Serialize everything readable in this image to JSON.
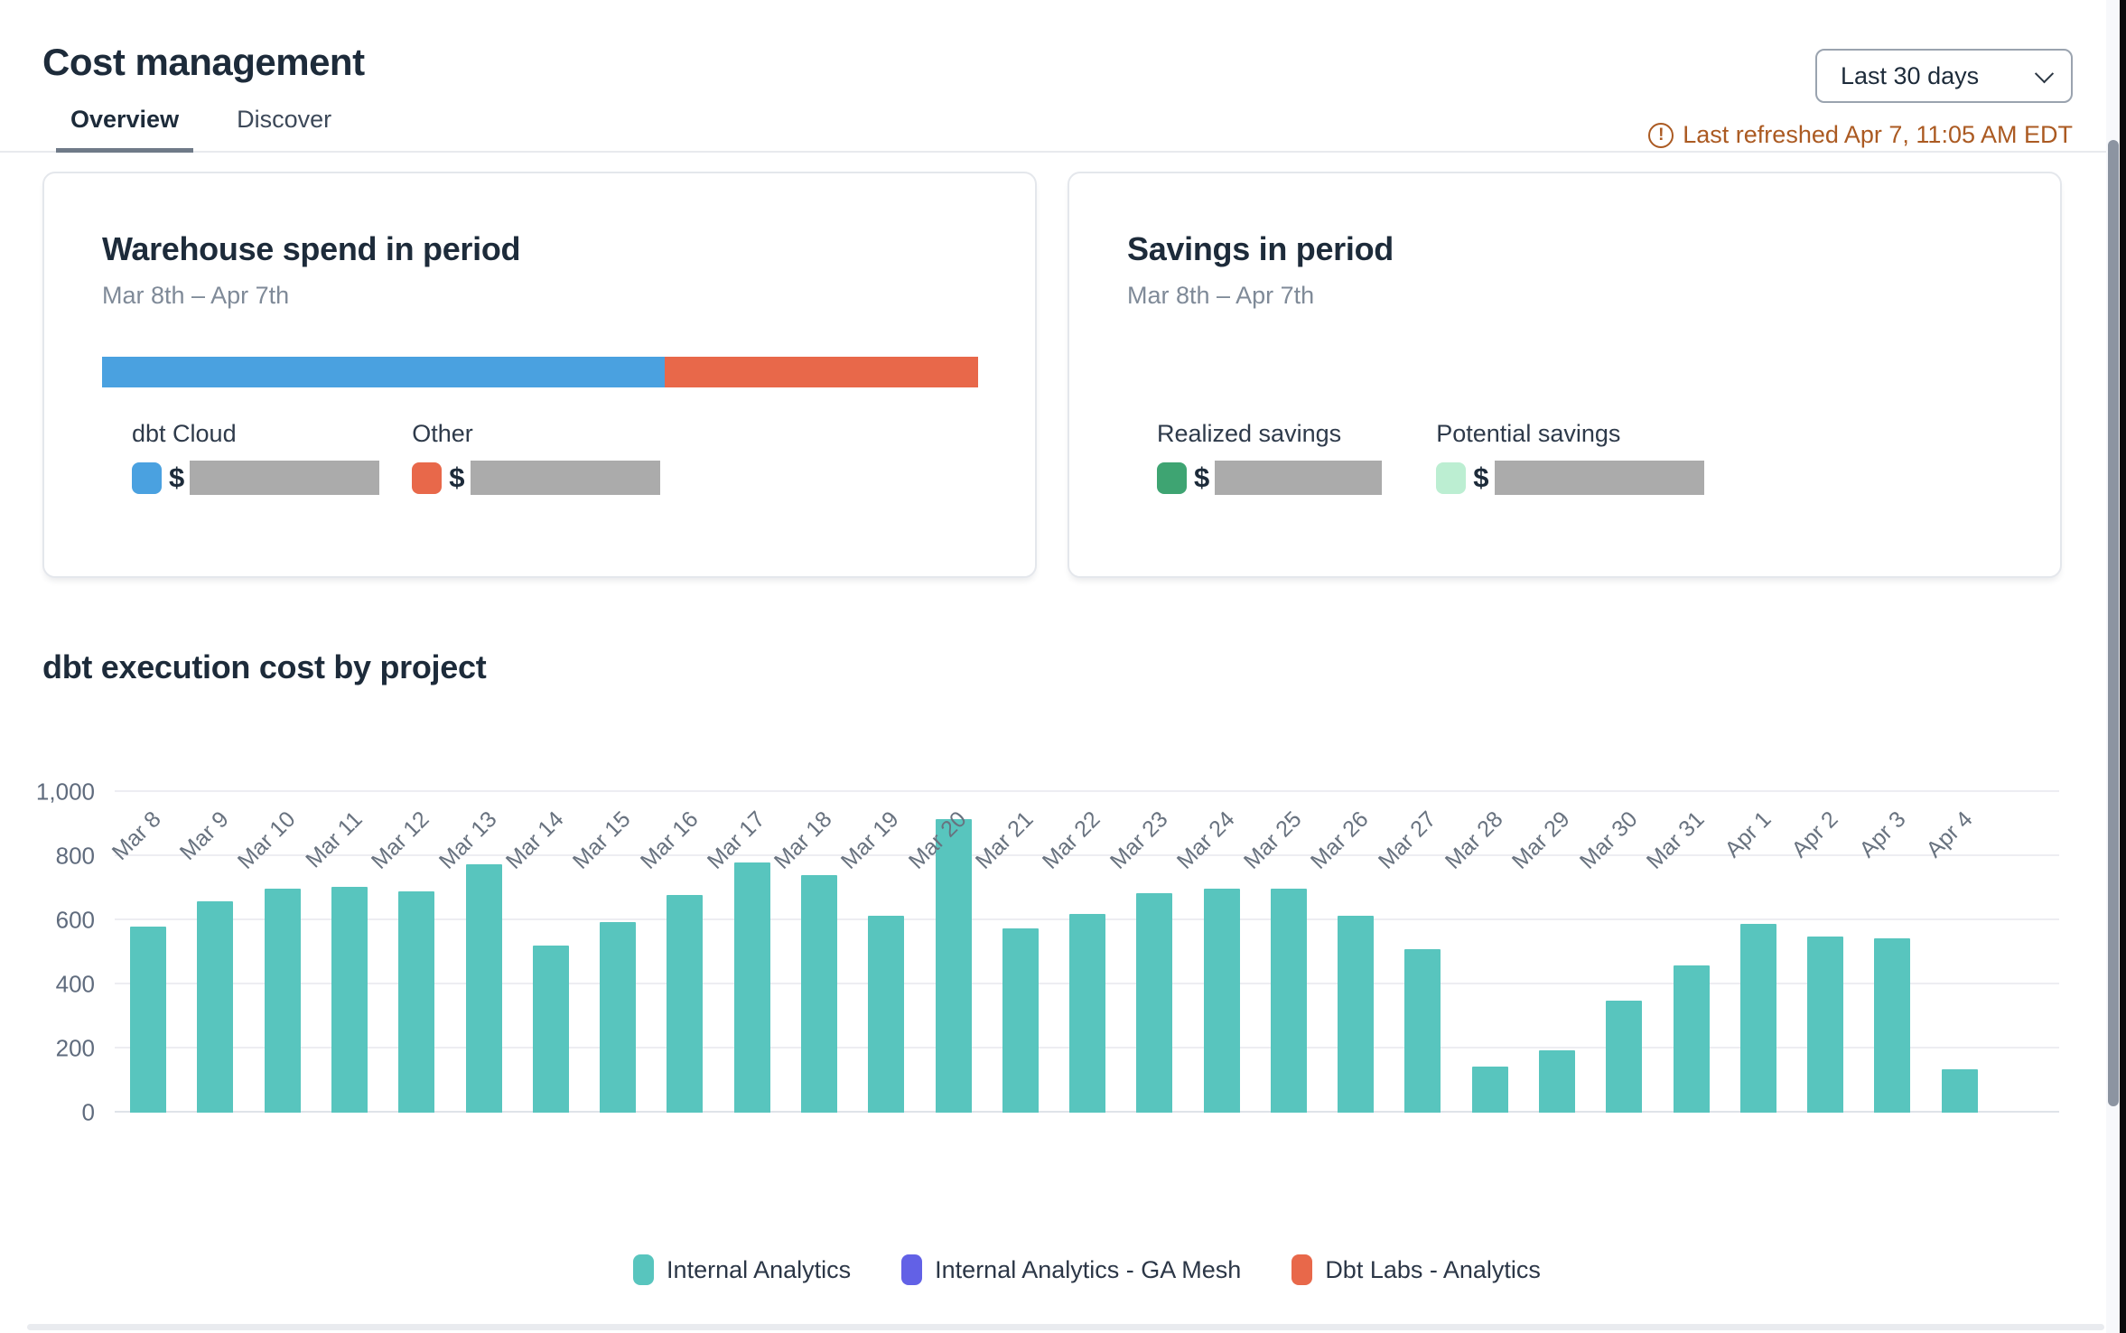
{
  "header": {
    "title": "Cost management",
    "date_range": {
      "value": "Last 30 days"
    },
    "last_refreshed": "Last refreshed Apr 7, 11:05 AM EDT",
    "warning_color": "#ab5a22"
  },
  "tabs": [
    {
      "label": "Overview",
      "active": true
    },
    {
      "label": "Discover",
      "active": false
    }
  ],
  "warehouse_card": {
    "title": "Warehouse spend in period",
    "subtitle": "Mar 8th – Apr 7th",
    "spend_bar": [
      {
        "name": "dbt Cloud",
        "color": "#4aa1e0",
        "pct": 64.2
      },
      {
        "name": "Other",
        "color": "#e8684a",
        "pct": 35.8
      }
    ],
    "items": [
      {
        "label": "dbt Cloud",
        "swatch_color": "#4aa1e0",
        "currency": "$",
        "value_masked": true
      },
      {
        "label": "Other",
        "swatch_color": "#e8684a",
        "currency": "$",
        "value_masked": true
      }
    ]
  },
  "savings_card": {
    "title": "Savings in period",
    "subtitle": "Mar 8th – Apr 7th",
    "items": [
      {
        "label": "Realized savings",
        "swatch_color": "#3ea472",
        "currency": "$",
        "value_masked": true
      },
      {
        "label": "Potential savings",
        "swatch_color": "#bceed2",
        "currency": "$",
        "value_masked": true
      }
    ]
  },
  "colors": {
    "masked_value": "#ababab"
  },
  "chart_data": {
    "type": "bar",
    "title": "dbt execution cost by project",
    "x": [
      "Mar 8",
      "Mar 9",
      "Mar 10",
      "Mar 11",
      "Mar 12",
      "Mar 13",
      "Mar 14",
      "Mar 15",
      "Mar 16",
      "Mar 17",
      "Mar 18",
      "Mar 19",
      "Mar 20",
      "Mar 21",
      "Mar 22",
      "Mar 23",
      "Mar 24",
      "Mar 25",
      "Mar 26",
      "Mar 27",
      "Mar 28",
      "Mar 29",
      "Mar 30",
      "Mar 31",
      "Apr 1",
      "Apr 2",
      "Apr 3",
      "Apr 4"
    ],
    "series": [
      {
        "name": "Internal Analytics",
        "color": "#58c5be",
        "values": [
          580,
          660,
          700,
          705,
          690,
          775,
          520,
          595,
          680,
          780,
          742,
          615,
          915,
          575,
          620,
          685,
          700,
          698,
          613,
          510,
          145,
          195,
          350,
          460,
          590,
          550,
          545,
          135
        ]
      },
      {
        "name": "Internal Analytics - GA Mesh",
        "color": "#6261e6",
        "values": null
      },
      {
        "name": "Dbt Labs - Analytics",
        "color": "#e8684a",
        "values": null
      }
    ],
    "ylim": [
      0,
      1000
    ],
    "yticks": [
      0,
      200,
      400,
      600,
      800,
      1000
    ],
    "ytick_labels": [
      "0",
      "200",
      "400",
      "600",
      "800",
      "1,000"
    ],
    "grid": true,
    "legend_position": "bottom",
    "x_label_rotation": -45
  }
}
